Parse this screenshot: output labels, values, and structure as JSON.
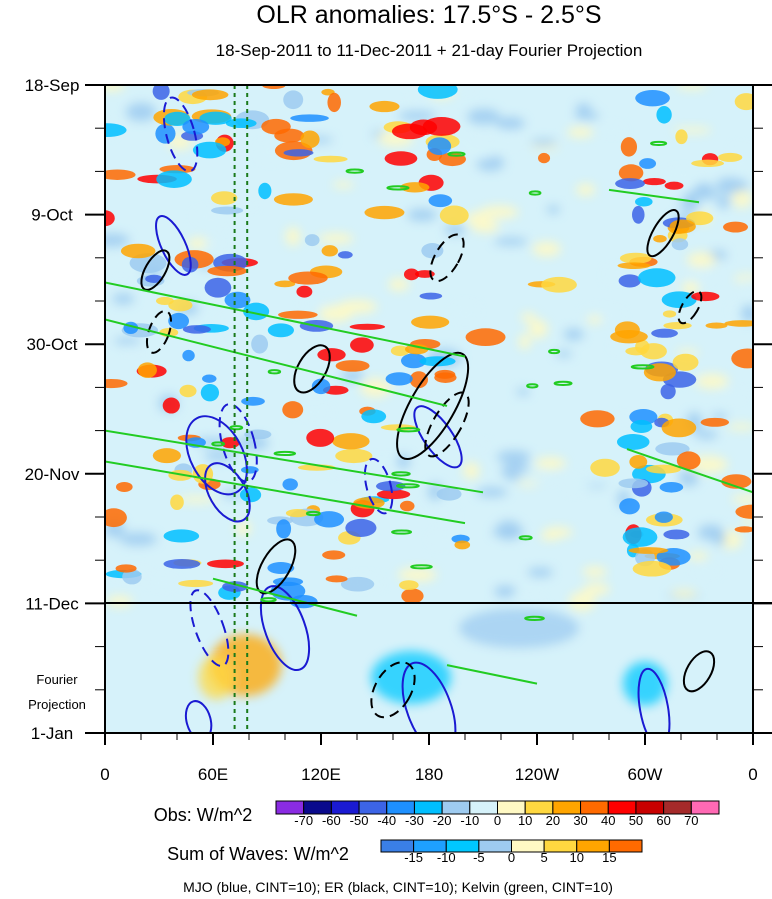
{
  "chart_data": {
    "type": "heatmap",
    "title": "OLR anomalies: 17.5°S - 2.5°S",
    "subtitle": "18-Sep-2011 to 11-Dec-2011 + 21-day Fourier Projection",
    "x_axis": {
      "ticks": [
        "0",
        "60E",
        "120E",
        "180",
        "120W",
        "60W",
        "0"
      ],
      "range_degrees_east": [
        0,
        360
      ]
    },
    "y_axis": {
      "ticks": [
        "18-Sep",
        "9-Oct",
        "30-Oct",
        "20-Nov",
        "11-Dec",
        "1-Jan"
      ],
      "range_days_since_18Sep": [
        0,
        105
      ],
      "annotation": "Fourier\nProjection",
      "projection_start": "11-Dec"
    },
    "legend_obs": {
      "label": "Obs: W/m^2",
      "levels": [
        "-70",
        "-60",
        "-50",
        "-40",
        "-30",
        "-20",
        "-10",
        "0",
        "10",
        "20",
        "30",
        "40",
        "50",
        "60",
        "70"
      ],
      "colors": [
        "#8a2be2",
        "#0a0a8c",
        "#1a1ad2",
        "#3c64e6",
        "#1e90ff",
        "#00bfff",
        "#9ecbf0",
        "#d6f2fa",
        "#fff9c4",
        "#ffd840",
        "#ffa500",
        "#ff6a00",
        "#ff0000",
        "#c80000",
        "#a52a2a",
        "#ff69b4"
      ]
    },
    "legend_waves": {
      "label": "Sum of Waves: W/m^2",
      "levels": [
        "-15",
        "-10",
        "-5",
        "0",
        "5",
        "10",
        "15"
      ],
      "colors": [
        "#3a7fe6",
        "#1ea0ff",
        "#00c8ff",
        "#9ecbf0",
        "#fff9c4",
        "#ffd840",
        "#ffa500",
        "#ff6a00"
      ]
    },
    "footer": "MJO (blue, CINT=10); ER (black, CINT=10); Kelvin (green, CINT=10)",
    "series": [
      {
        "name": "MJO",
        "color": "#1a1ad2"
      },
      {
        "name": "ER",
        "color": "#000000"
      },
      {
        "name": "Kelvin",
        "color": "#22cc22"
      }
    ],
    "reference_lines_lon": [
      72,
      79
    ]
  }
}
